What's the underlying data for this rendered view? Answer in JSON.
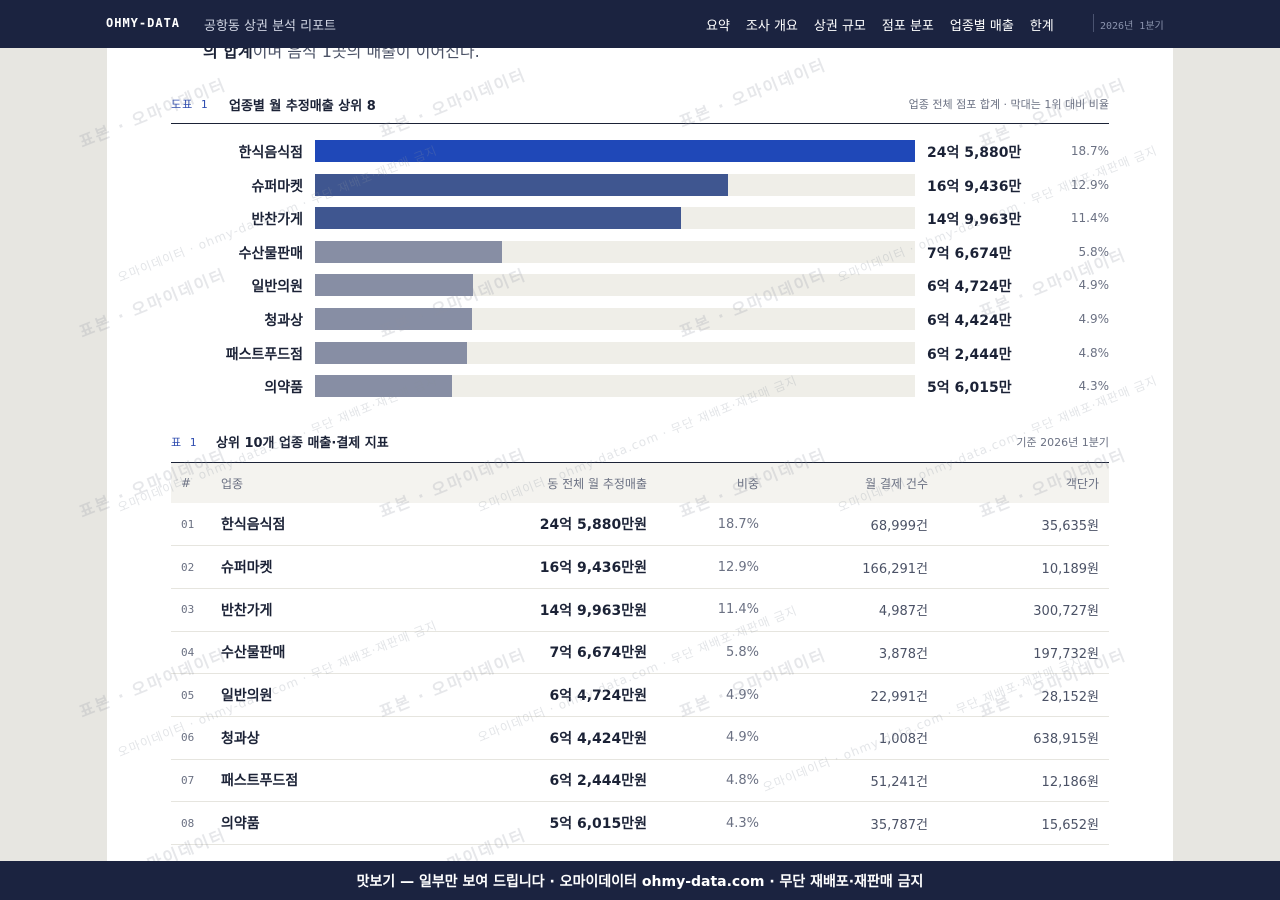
{
  "nav": {
    "brand": "OHMY-DATA",
    "report_title": "공항동 상권 분석 리포트",
    "links": [
      "요약",
      "조사 개요",
      "상권 규모",
      "점포 분포",
      "업종별 매출",
      "한계"
    ],
    "period": "2026년 1분기"
  },
  "intro": {
    "cut_bold": "의 합계",
    "cut_rest": "이며 음식 1곳의 매출이 이어진다."
  },
  "figure": {
    "tag": "도표 1",
    "title": "업종별 월 추정매출 상위 8",
    "note": "업종 전체 점포 합계 · 막대는 1위 대비 비율"
  },
  "colors": {
    "bar_top1": "#1f48b8",
    "bar_top3": "#3f5690",
    "bar_rest": "#878ea4",
    "track": "#efeee8",
    "accent": "#2f4db0"
  },
  "chart_data": {
    "type": "bar",
    "orientation": "horizontal",
    "title": "업종별 월 추정매출 상위 8",
    "categories": [
      "한식음식점",
      "슈퍼마켓",
      "반찬가게",
      "수산물판매",
      "일반의원",
      "청과상",
      "패스트푸드점",
      "의약품"
    ],
    "value_labels": [
      "24억 5,880만",
      "16억 9,436만",
      "14억 9,963만",
      "7억 6,674만",
      "6억 4,724만",
      "6억 4,424만",
      "6억 2,444만",
      "5억 6,015만"
    ],
    "values_manwon": [
      245880,
      169436,
      149963,
      76674,
      64724,
      64424,
      62444,
      56015
    ],
    "share_labels": [
      "18.7%",
      "12.9%",
      "11.4%",
      "5.8%",
      "4.9%",
      "4.9%",
      "4.8%",
      "4.3%"
    ],
    "ratio_to_top": [
      1.0,
      0.689,
      0.61,
      0.312,
      0.263,
      0.262,
      0.254,
      0.228
    ]
  },
  "table": {
    "tag": "표 1",
    "title": "상위 10개 업종 매출·결제 지표",
    "note": "기준 2026년 1분기",
    "columns": [
      "#",
      "업종",
      "동 전체 월 추정매출",
      "비중",
      "월 결제 건수",
      "객단가"
    ],
    "rows": [
      {
        "idx": "01",
        "name": "한식음식점",
        "sales": "24억 5,880만원",
        "share": "18.7%",
        "tx": "68,999건",
        "aov": "35,635원"
      },
      {
        "idx": "02",
        "name": "슈퍼마켓",
        "sales": "16억 9,436만원",
        "share": "12.9%",
        "tx": "166,291건",
        "aov": "10,189원"
      },
      {
        "idx": "03",
        "name": "반찬가게",
        "sales": "14억 9,963만원",
        "share": "11.4%",
        "tx": "4,987건",
        "aov": "300,727원"
      },
      {
        "idx": "04",
        "name": "수산물판매",
        "sales": "7억 6,674만원",
        "share": "5.8%",
        "tx": "3,878건",
        "aov": "197,732원"
      },
      {
        "idx": "05",
        "name": "일반의원",
        "sales": "6억 4,724만원",
        "share": "4.9%",
        "tx": "22,991건",
        "aov": "28,152원"
      },
      {
        "idx": "06",
        "name": "청과상",
        "sales": "6억 4,424만원",
        "share": "4.9%",
        "tx": "1,008건",
        "aov": "638,915원"
      },
      {
        "idx": "07",
        "name": "패스트푸드점",
        "sales": "6억 2,444만원",
        "share": "4.8%",
        "tx": "51,241건",
        "aov": "12,186원"
      },
      {
        "idx": "08",
        "name": "의약품",
        "sales": "5억 6,015만원",
        "share": "4.3%",
        "tx": "35,787건",
        "aov": "15,652원"
      }
    ]
  },
  "watermark": {
    "main": "표본 · 오마이데이터",
    "secondary": "오마이데이터 · ohmy-data.com · 무단 재배포·재판매 금지"
  },
  "banner": {
    "text": "맛보기 — 일부만 보여 드립니다 · 오마이데이터 ohmy-data.com · 무단 재배포·재판매 금지"
  }
}
